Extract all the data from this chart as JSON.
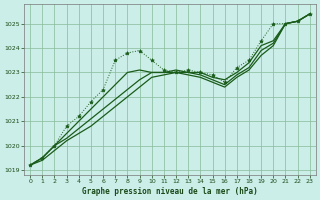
{
  "title": "Graphe pression niveau de la mer (hPa)",
  "background_color": "#cceee8",
  "grid_color": "#88bb99",
  "line_color": "#1a5c1a",
  "xlim": [
    -0.5,
    23.5
  ],
  "ylim": [
    1018.8,
    1025.8
  ],
  "yticks": [
    1019,
    1020,
    1021,
    1022,
    1023,
    1024,
    1025
  ],
  "xticks": [
    0,
    1,
    2,
    3,
    4,
    5,
    6,
    7,
    8,
    9,
    10,
    11,
    12,
    13,
    14,
    15,
    16,
    17,
    18,
    19,
    20,
    21,
    22,
    23
  ],
  "series_dotted": [
    1019.2,
    1019.5,
    1020.0,
    1020.8,
    1021.2,
    1021.8,
    1022.3,
    1023.5,
    1023.8,
    1023.9,
    1023.5,
    1023.1,
    1023.0,
    1023.1,
    1023.0,
    1022.9,
    1022.6,
    1023.2,
    1023.5,
    1024.3,
    1025.0,
    1025.0,
    1025.1,
    1025.4
  ],
  "series_solid": [
    [
      1019.2,
      1019.5,
      1020.0,
      1020.5,
      1021.0,
      1021.5,
      1022.0,
      1022.5,
      1023.0,
      1023.1,
      1023.0,
      1023.0,
      1023.1,
      1023.0,
      1023.0,
      1022.8,
      1022.7,
      1023.0,
      1023.4,
      1024.1,
      1024.3,
      1025.0,
      1025.1,
      1025.4
    ],
    [
      1019.2,
      1019.5,
      1020.0,
      1020.3,
      1020.7,
      1021.1,
      1021.5,
      1021.9,
      1022.3,
      1022.7,
      1023.0,
      1023.0,
      1023.0,
      1023.0,
      1022.9,
      1022.7,
      1022.5,
      1022.9,
      1023.2,
      1023.9,
      1024.2,
      1025.0,
      1025.1,
      1025.4
    ],
    [
      1019.2,
      1019.4,
      1019.8,
      1020.2,
      1020.5,
      1020.8,
      1021.2,
      1021.6,
      1022.0,
      1022.4,
      1022.8,
      1022.9,
      1023.0,
      1022.9,
      1022.8,
      1022.6,
      1022.4,
      1022.8,
      1023.1,
      1023.7,
      1024.1,
      1025.0,
      1025.1,
      1025.4
    ]
  ]
}
